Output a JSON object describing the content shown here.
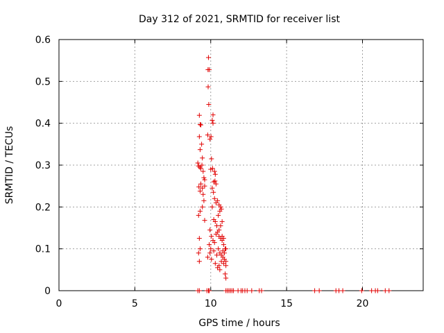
{
  "chart_data": {
    "type": "scatter",
    "title": "Day 312 of 2021, SRMTID for receiver list",
    "xlabel": "GPS time / hours",
    "ylabel": "SRMTID / TECUs",
    "xlim": [
      0,
      24
    ],
    "ylim": [
      0,
      0.6
    ],
    "xticks": [
      0,
      5,
      10,
      15,
      20
    ],
    "yticks": [
      0,
      0.1,
      0.2,
      0.3,
      0.4,
      0.5,
      0.6
    ],
    "xtick_labels": [
      "0",
      "5",
      "10",
      "15",
      "20"
    ],
    "ytick_labels": [
      "0",
      "0.1",
      "0.2",
      "0.3",
      "0.4",
      "0.5",
      "0.6"
    ],
    "grid": true,
    "marker": "+",
    "marker_color": "#e00000",
    "points": [
      [
        9.85,
        0.557
      ],
      [
        9.82,
        0.528
      ],
      [
        9.9,
        0.528
      ],
      [
        9.83,
        0.487
      ],
      [
        9.87,
        0.445
      ],
      [
        9.25,
        0.419
      ],
      [
        10.15,
        0.42
      ],
      [
        9.3,
        0.397
      ],
      [
        9.35,
        0.396
      ],
      [
        10.1,
        0.407
      ],
      [
        10.15,
        0.4
      ],
      [
        9.8,
        0.372
      ],
      [
        9.95,
        0.362
      ],
      [
        10.02,
        0.368
      ],
      [
        9.25,
        0.368
      ],
      [
        9.4,
        0.35
      ],
      [
        9.3,
        0.337
      ],
      [
        9.45,
        0.317
      ],
      [
        9.15,
        0.305
      ],
      [
        9.2,
        0.298
      ],
      [
        9.28,
        0.295
      ],
      [
        9.35,
        0.292
      ],
      [
        9.42,
        0.3
      ],
      [
        10.05,
        0.315
      ],
      [
        10.12,
        0.292
      ],
      [
        10.0,
        0.29
      ],
      [
        10.25,
        0.285
      ],
      [
        10.3,
        0.278
      ],
      [
        9.5,
        0.285
      ],
      [
        9.55,
        0.27
      ],
      [
        9.6,
        0.265
      ],
      [
        9.35,
        0.255
      ],
      [
        9.45,
        0.245
      ],
      [
        9.22,
        0.248
      ],
      [
        9.3,
        0.238
      ],
      [
        9.5,
        0.23
      ],
      [
        10.2,
        0.26
      ],
      [
        10.28,
        0.262
      ],
      [
        10.35,
        0.255
      ],
      [
        10.1,
        0.245
      ],
      [
        10.18,
        0.235
      ],
      [
        9.6,
        0.25
      ],
      [
        9.55,
        0.215
      ],
      [
        9.45,
        0.2
      ],
      [
        9.3,
        0.19
      ],
      [
        9.2,
        0.18
      ],
      [
        9.6,
        0.168
      ],
      [
        10.25,
        0.22
      ],
      [
        10.35,
        0.21
      ],
      [
        10.45,
        0.215
      ],
      [
        10.55,
        0.205
      ],
      [
        10.65,
        0.2
      ],
      [
        10.7,
        0.195
      ],
      [
        10.6,
        0.19
      ],
      [
        10.5,
        0.18
      ],
      [
        10.1,
        0.2
      ],
      [
        10.2,
        0.17
      ],
      [
        10.3,
        0.165
      ],
      [
        10.4,
        0.155
      ],
      [
        10.55,
        0.145
      ],
      [
        10.65,
        0.155
      ],
      [
        10.75,
        0.165
      ],
      [
        9.95,
        0.145
      ],
      [
        10.05,
        0.13
      ],
      [
        10.15,
        0.12
      ],
      [
        10.25,
        0.115
      ],
      [
        10.35,
        0.135
      ],
      [
        10.45,
        0.14
      ],
      [
        10.55,
        0.13
      ],
      [
        10.65,
        0.125
      ],
      [
        10.75,
        0.12
      ],
      [
        10.85,
        0.11
      ],
      [
        10.95,
        0.1
      ],
      [
        10.5,
        0.1
      ],
      [
        10.6,
        0.09
      ],
      [
        10.7,
        0.085
      ],
      [
        10.8,
        0.08
      ],
      [
        10.9,
        0.075
      ],
      [
        11.0,
        0.07
      ],
      [
        10.4,
        0.085
      ],
      [
        10.2,
        0.095
      ],
      [
        10.0,
        0.1
      ],
      [
        9.9,
        0.11
      ],
      [
        9.25,
        0.125
      ],
      [
        9.3,
        0.1
      ],
      [
        9.2,
        0.09
      ],
      [
        9.25,
        0.07
      ],
      [
        9.8,
        0.08
      ],
      [
        10.05,
        0.075
      ],
      [
        10.3,
        0.065
      ],
      [
        10.55,
        0.06
      ],
      [
        10.7,
        0.07
      ],
      [
        10.85,
        0.065
      ],
      [
        11.0,
        0.06
      ],
      [
        10.95,
        0.04
      ],
      [
        11.0,
        0.03
      ],
      [
        10.45,
        0.055
      ],
      [
        10.6,
        0.05
      ],
      [
        9.95,
        0.09
      ],
      [
        10.8,
        0.095
      ],
      [
        10.9,
        0.09
      ],
      [
        11.0,
        0.1
      ],
      [
        10.75,
        0.13
      ],
      [
        10.85,
        0.125
      ],
      [
        9.15,
        0
      ],
      [
        9.25,
        0
      ],
      [
        9.75,
        0
      ],
      [
        9.85,
        0
      ],
      [
        9.9,
        0
      ],
      [
        11.0,
        0
      ],
      [
        11.1,
        0
      ],
      [
        11.2,
        0
      ],
      [
        11.3,
        0
      ],
      [
        11.4,
        0
      ],
      [
        11.5,
        0
      ],
      [
        11.8,
        0
      ],
      [
        12.0,
        0
      ],
      [
        12.1,
        0
      ],
      [
        12.25,
        0
      ],
      [
        12.4,
        0
      ],
      [
        12.7,
        0
      ],
      [
        13.2,
        0
      ],
      [
        13.35,
        0
      ],
      [
        16.85,
        0
      ],
      [
        17.15,
        0
      ],
      [
        18.25,
        0
      ],
      [
        18.45,
        0
      ],
      [
        18.7,
        0
      ],
      [
        19.95,
        0
      ],
      [
        20.6,
        0
      ],
      [
        20.85,
        0
      ],
      [
        21.0,
        0
      ],
      [
        21.5,
        0
      ],
      [
        21.75,
        0
      ]
    ]
  }
}
